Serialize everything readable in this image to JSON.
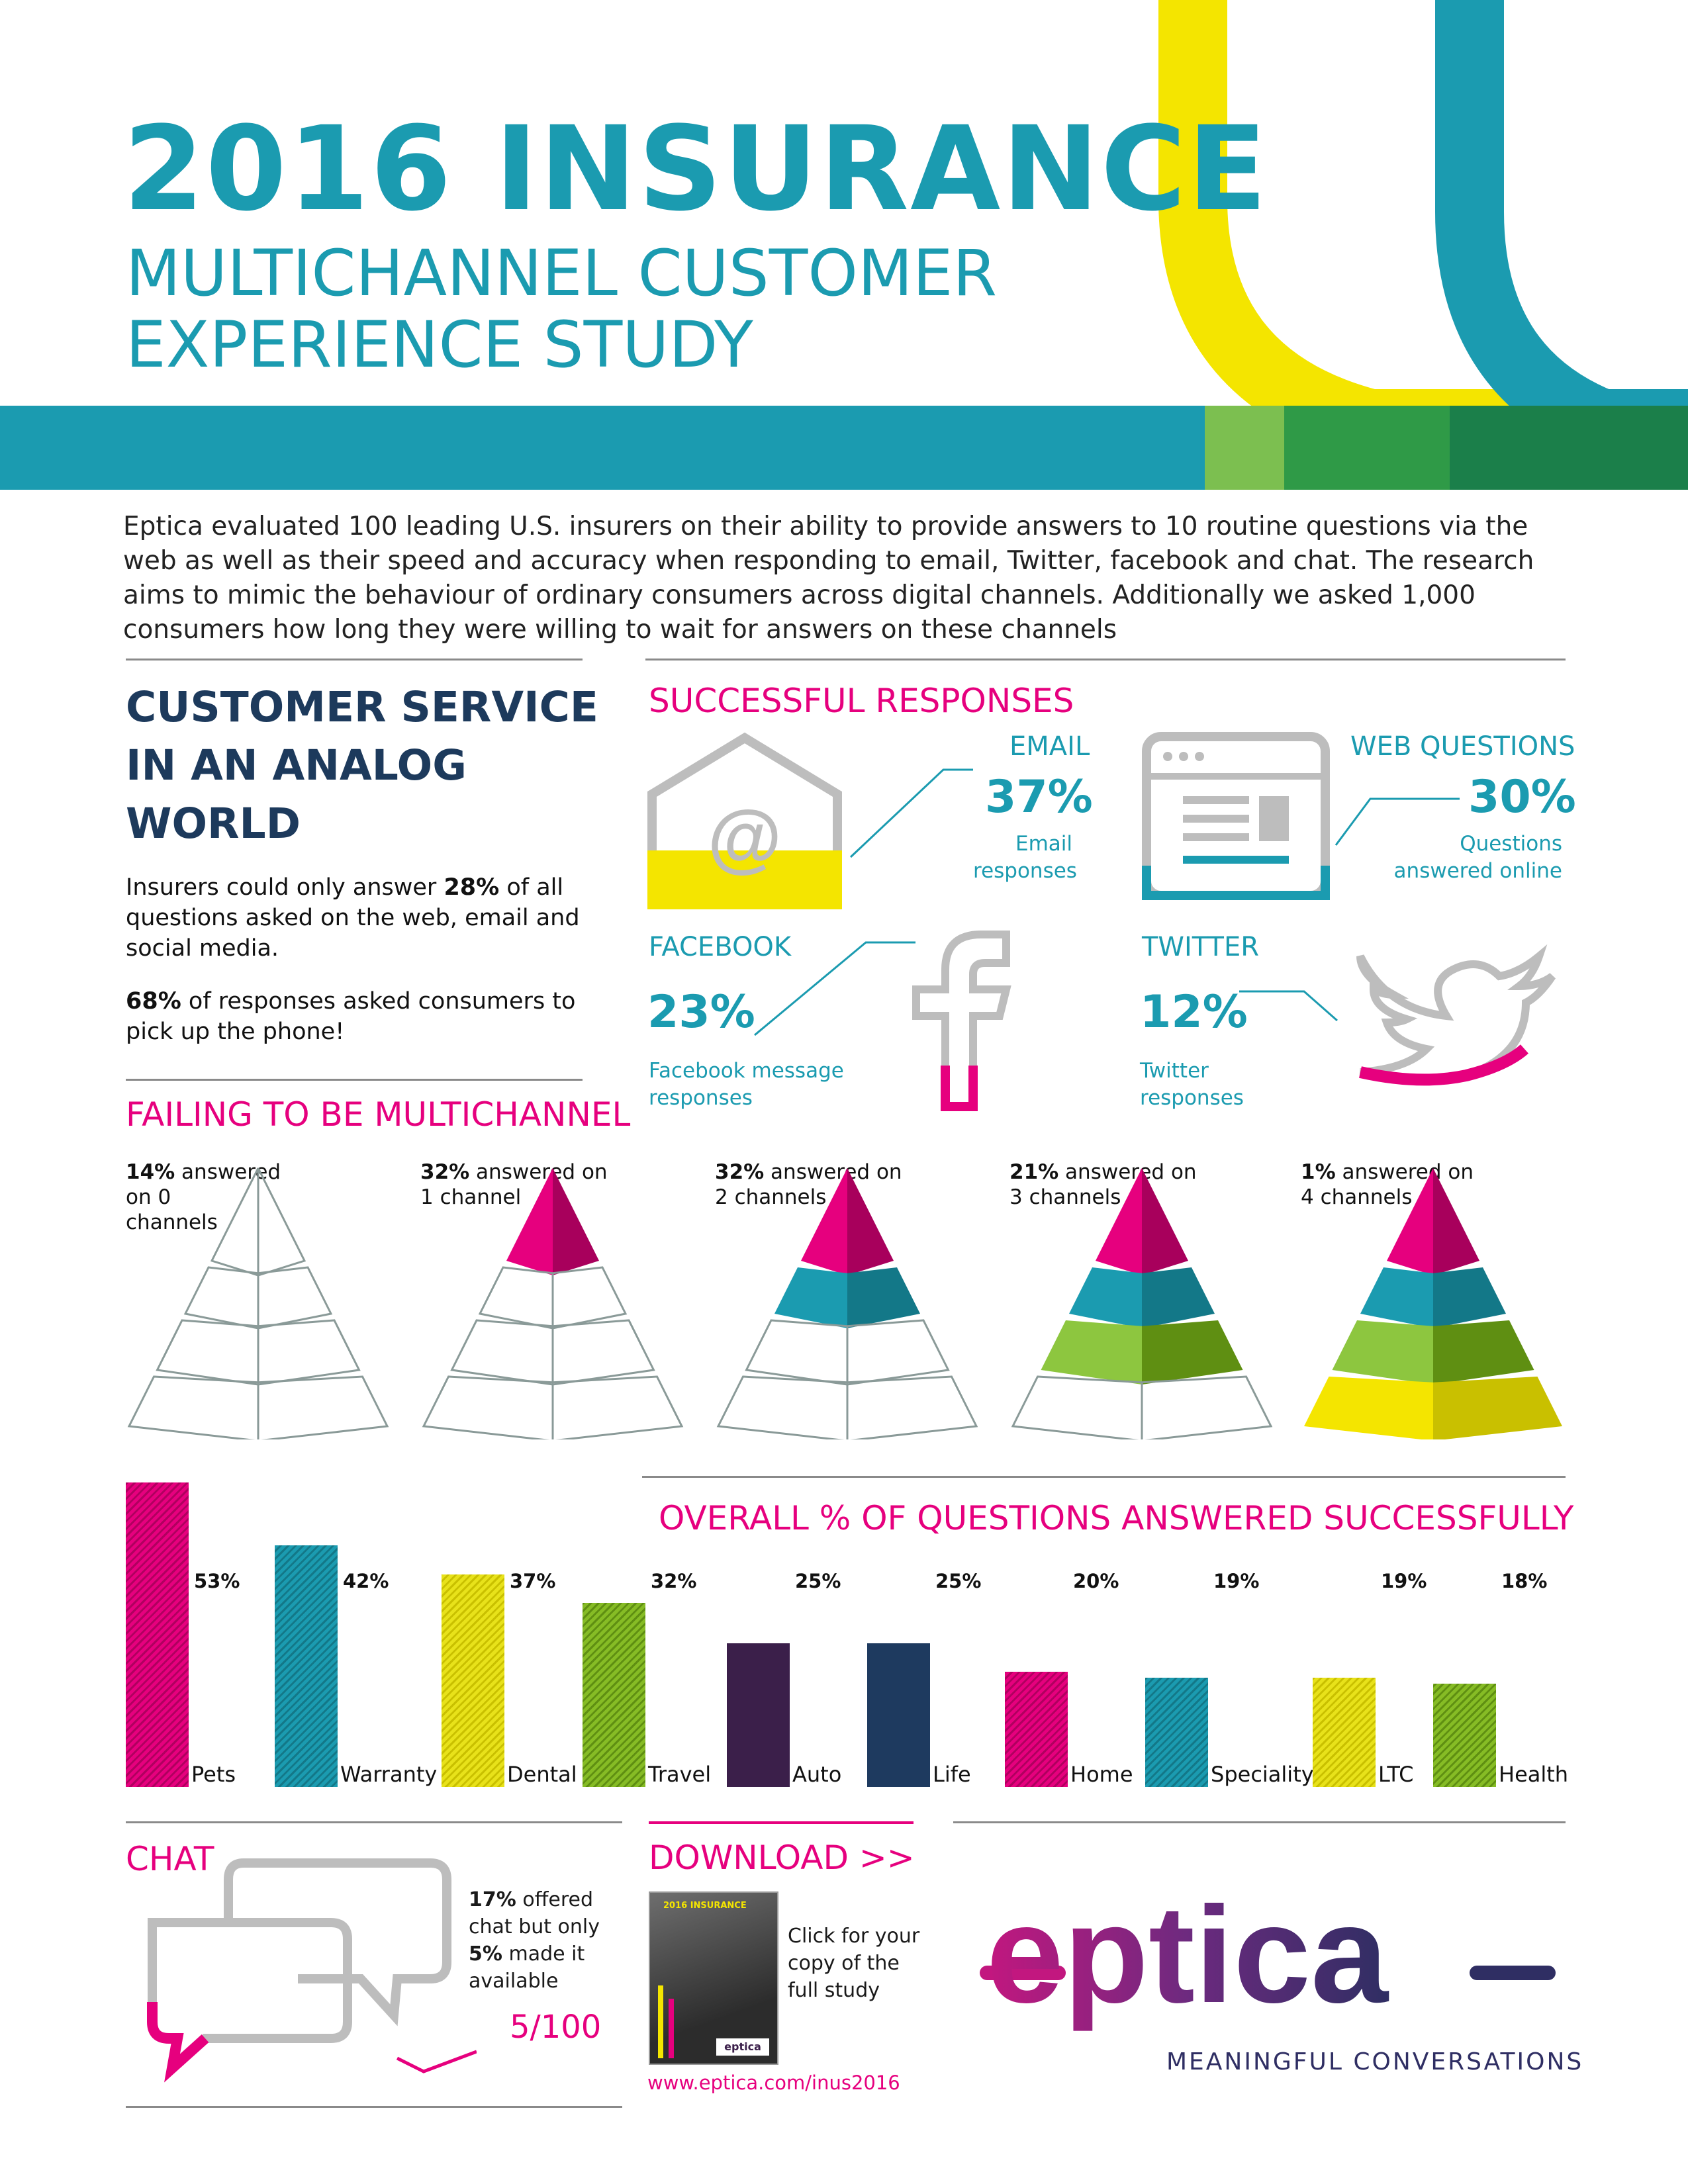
{
  "header": {
    "title_line1": "2016 INSURANCE",
    "title_line2": "MULTICHANNEL CUSTOMER",
    "title_line3": "EXPERIENCE STUDY"
  },
  "intro": "Eptica evaluated 100 leading U.S. insurers on their ability to provide answers to 10 routine questions via the web as well as their speed and accuracy when responding to email, Twitter, facebook and chat. The research aims to mimic the behaviour of ordinary consumers across digital channels. Additionally we asked 1,000 consumers how long they were willing to wait for answers on these channels",
  "analog": {
    "heading_line1": "CUSTOMER SERVICE",
    "heading_line2": "IN AN ANALOG",
    "heading_line3": "WORLD",
    "p1_pre": "Insurers could only answer ",
    "p1_bold": "28%",
    "p1_post": " of all questions asked on the web, email and social media.",
    "p2_bold": "68%",
    "p2_post": " of responses asked consumers to pick up the phone!"
  },
  "successful": {
    "heading": "SUCCESSFUL RESPONSES",
    "email": {
      "label": "EMAIL",
      "pct": "37%",
      "desc1": "Email",
      "desc2": "responses"
    },
    "web": {
      "label": "WEB QUESTIONS",
      "pct": "30%",
      "desc1": "Questions",
      "desc2": "answered online"
    },
    "facebook": {
      "label": "FACEBOOK",
      "pct": "23%",
      "desc1": "Facebook message",
      "desc2": "responses"
    },
    "twitter": {
      "label": "TWITTER",
      "pct": "12%",
      "desc1": "Twitter",
      "desc2": "responses"
    }
  },
  "multichannel": {
    "heading": "FAILING TO BE MULTICHANNEL",
    "items": [
      {
        "bold": "14%",
        "text": " answered",
        "line2": "on 0",
        "line3": "channels",
        "filled": 0
      },
      {
        "bold": "32%",
        "text": " answered on",
        "line2": "1 channel",
        "line3": "",
        "filled": 1
      },
      {
        "bold": "32%",
        "text": " answered on",
        "line2": "2 channels",
        "line3": "",
        "filled": 2
      },
      {
        "bold": "21%",
        "text": " answered on",
        "line2": "3 channels",
        "line3": "",
        "filled": 3
      },
      {
        "bold": "1%",
        "text": " answered on",
        "line2": "4 channels",
        "line3": "",
        "filled": 4
      }
    ],
    "colors": {
      "top": "#e6007e",
      "l2": "#1b9bb0",
      "l3": "#8dc63f",
      "l4": "#f4e500"
    }
  },
  "chart_data": {
    "type": "bar",
    "title": "OVERALL % OF QUESTIONS ANSWERED SUCCESSFULLY",
    "categories": [
      "Pets",
      "Warranty",
      "Dental",
      "Travel",
      "Auto",
      "Life",
      "Home",
      "Speciality",
      "LTC",
      "Health"
    ],
    "values": [
      53,
      42,
      37,
      32,
      25,
      25,
      20,
      19,
      19,
      18
    ],
    "labels": [
      "53%",
      "42%",
      "37%",
      "32%",
      "25%",
      "25%",
      "20%",
      "19%",
      "19%",
      "18%"
    ],
    "fills": [
      "stripe-pink",
      "stripe-teal",
      "stripe-yellow",
      "stripe-green",
      "solid-purple",
      "solid-navy",
      "stripe-pink",
      "stripe-teal",
      "stripe-yellow",
      "stripe-green"
    ]
  },
  "chat": {
    "heading": "CHAT",
    "bold1": "17%",
    "text1": " offered chat but only ",
    "bold2": "5%",
    "text2": " made it available",
    "score": "5/100"
  },
  "download": {
    "heading": "DOWNLOAD >>",
    "cta": "Click for your copy of the full study",
    "url": "www.eptica.com/inus2016",
    "cover_title": "2016 INSURANCE",
    "cover_brand": "eptica"
  },
  "brand": {
    "logo": "eptica",
    "tagline": "MEANINGFUL CONVERSATIONS"
  }
}
